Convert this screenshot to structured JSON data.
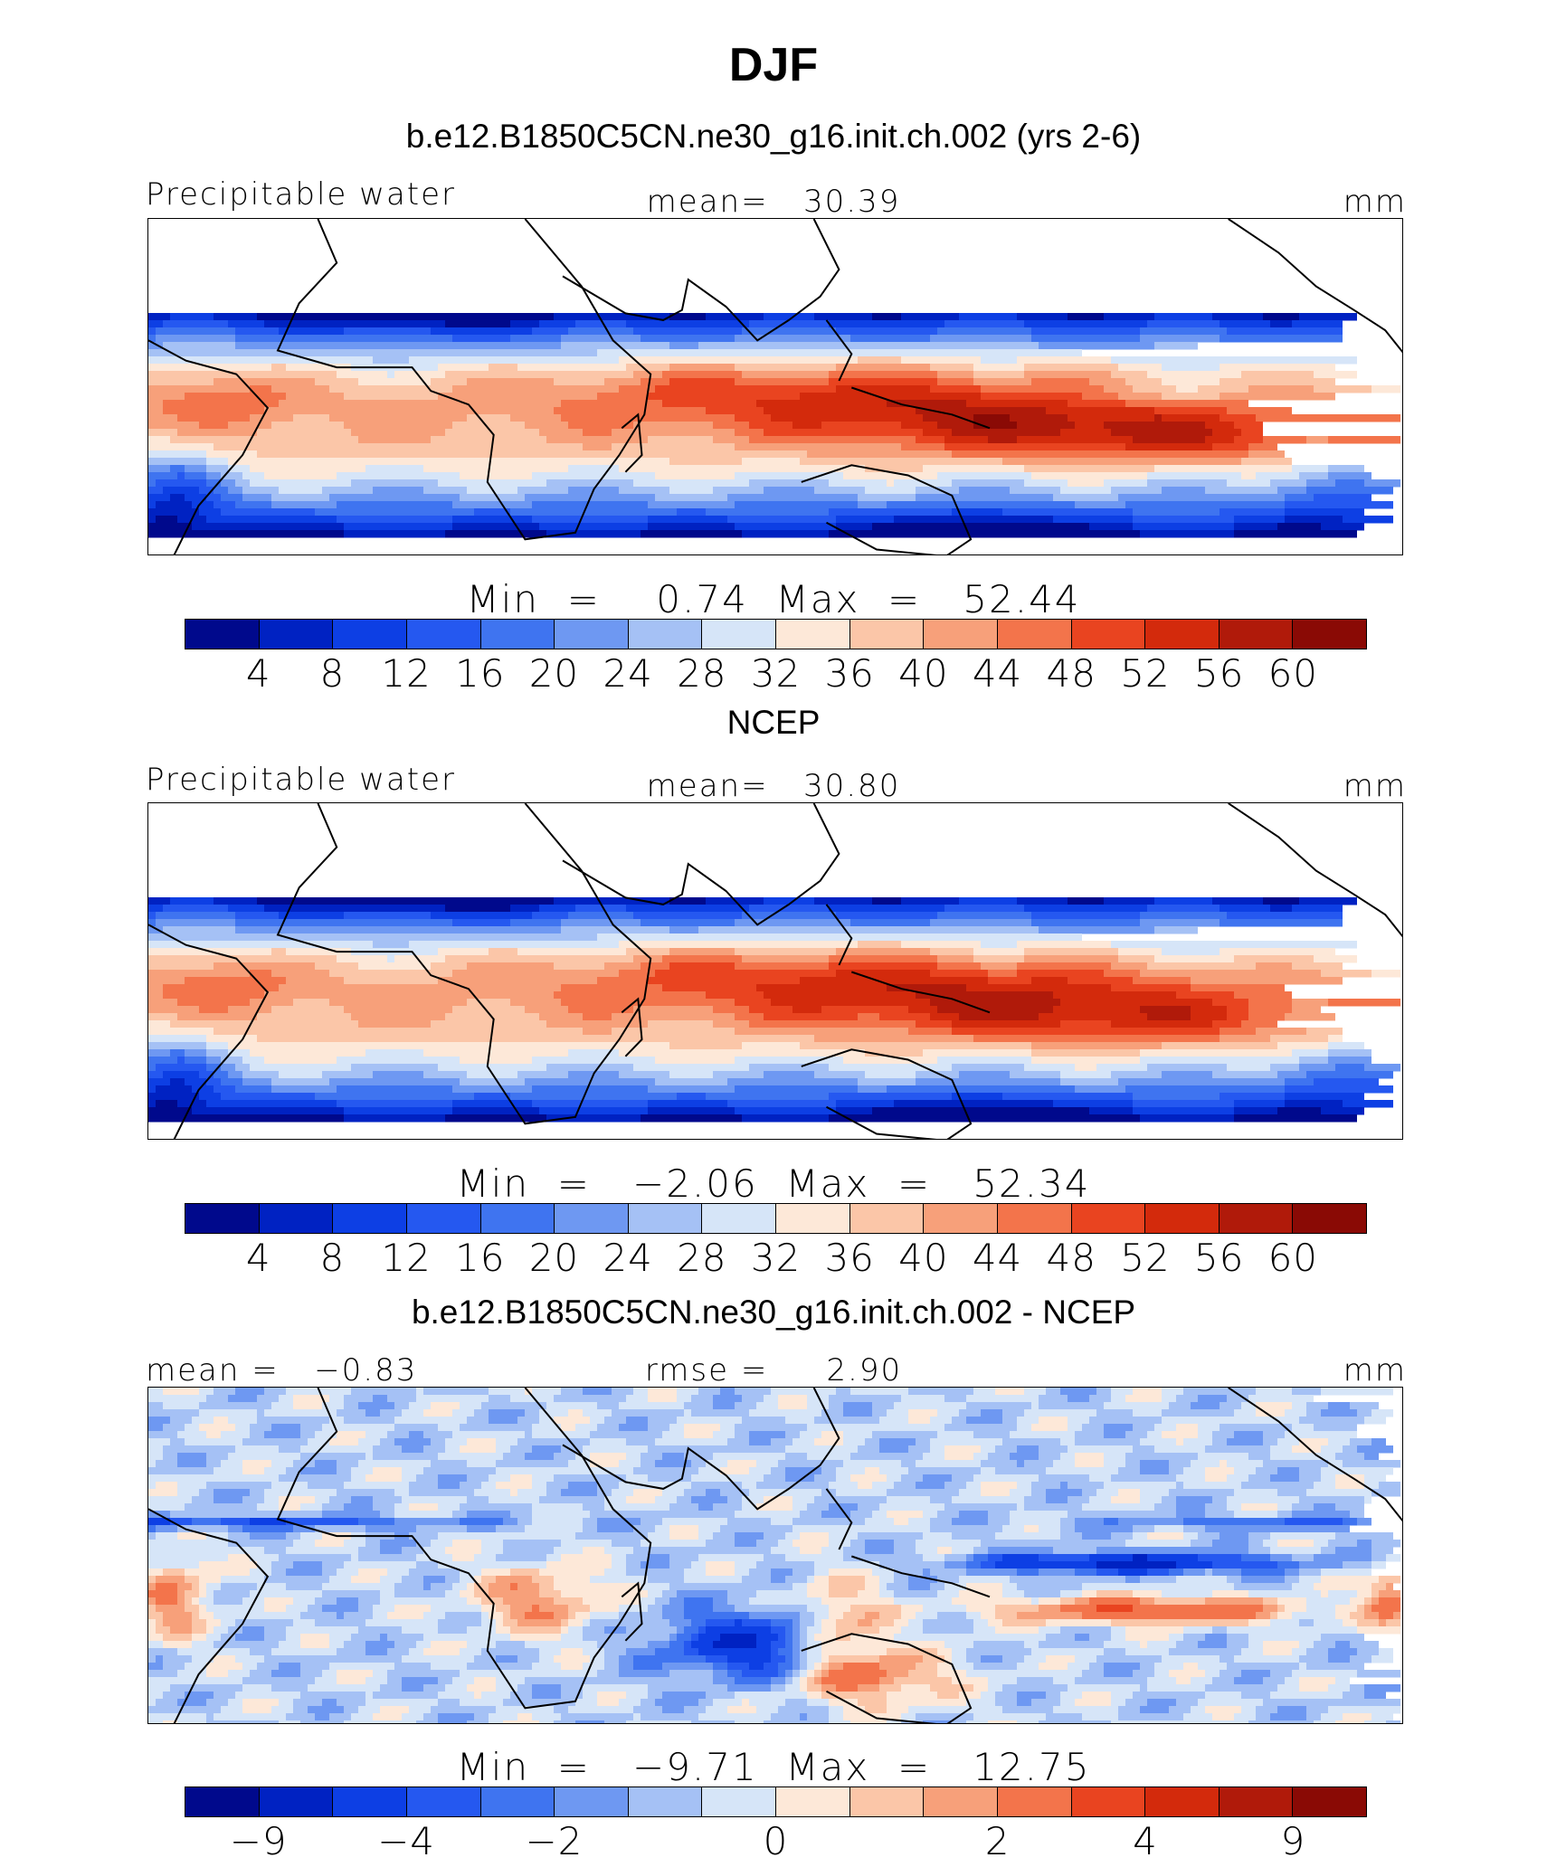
{
  "title": "DJF",
  "colors": [
    "#00098c",
    "#0022c2",
    "#0d3fe4",
    "#2558f0",
    "#3f74f0",
    "#6e98f2",
    "#a5c1f5",
    "#d6e5f8",
    "#fde8d8",
    "#fbc6a8",
    "#f7a07a",
    "#f3744b",
    "#e94420",
    "#d32a0c",
    "#b01a0a",
    "#8a0a05"
  ],
  "coast_color": "#000000",
  "panels": [
    {
      "title": "b.e12.B1850C5CN.ne30_g16.init.ch.002 (yrs 2-6)",
      "left_label": "Precipitable water",
      "center_label": "mean=   30.39",
      "right_label": "mm",
      "minmax": "Min  =    0.74  Max  =   52.44",
      "colorbar_ticks": [
        "4",
        "8",
        "12",
        "16",
        "20",
        "24",
        "28",
        "32",
        "36",
        "40",
        "44",
        "48",
        "52",
        "56",
        "60"
      ],
      "field": "model"
    },
    {
      "title": "NCEP",
      "left_label": "Precipitable water",
      "center_label": "mean=   30.80",
      "right_label": "mm",
      "minmax": "Min  =   −2.06  Max  =   52.34",
      "colorbar_ticks": [
        "4",
        "8",
        "12",
        "16",
        "20",
        "24",
        "28",
        "32",
        "36",
        "40",
        "44",
        "48",
        "52",
        "56",
        "60"
      ],
      "field": "obs"
    },
    {
      "title": "b.e12.B1850C5CN.ne30_g16.init.ch.002 - NCEP",
      "left_label": "mean =   −0.83",
      "center_label": "rmse =     2.90",
      "right_label": "mm",
      "minmax": "Min  =   −9.71  Max  =   12.75",
      "colorbar_ticks": [
        "−9",
        "−4",
        "−2",
        "0",
        "2",
        "4",
        "9"
      ],
      "field": "diff"
    }
  ]
}
